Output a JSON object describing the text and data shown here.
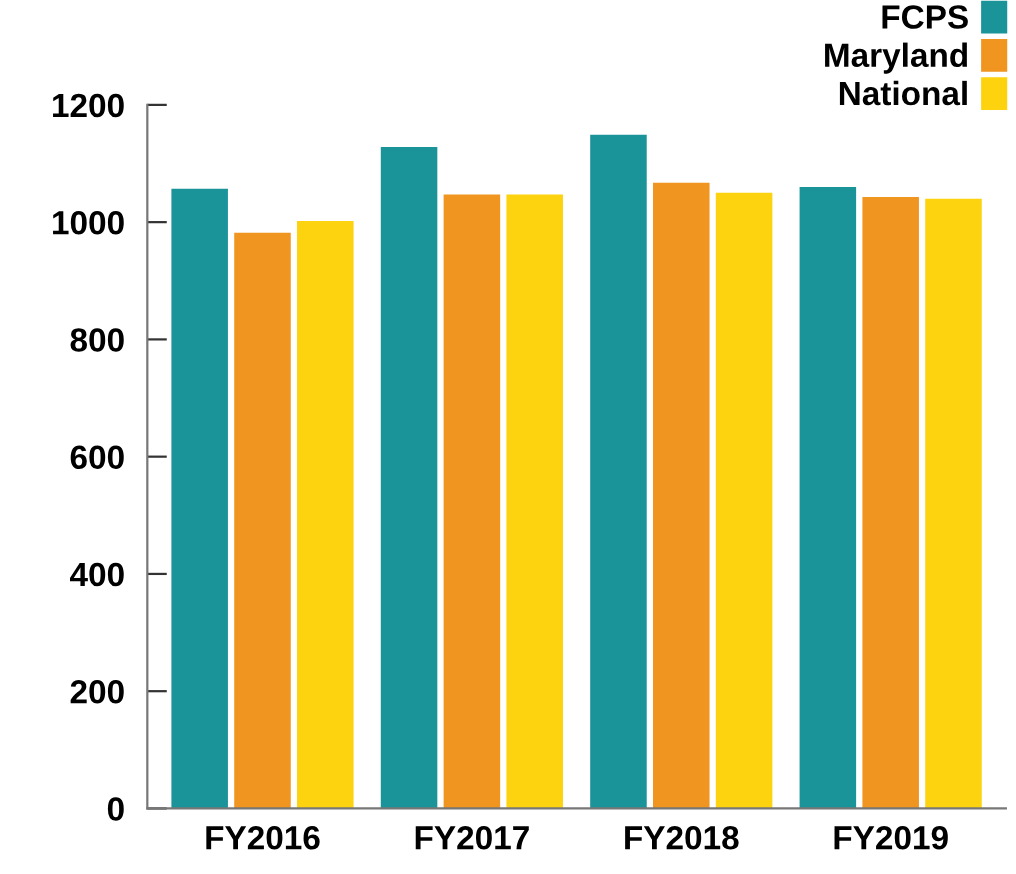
{
  "chart_data": {
    "type": "bar",
    "categories": [
      "FY2016",
      "FY2017",
      "FY2018",
      "FY2019"
    ],
    "series": [
      {
        "name": "FCPS",
        "color": "#1a9399",
        "values": [
          1057,
          1128,
          1149,
          1060
        ]
      },
      {
        "name": "Maryland",
        "color": "#f0951f",
        "values": [
          982,
          1047,
          1067,
          1043
        ]
      },
      {
        "name": "National",
        "color": "#fdd20e",
        "values": [
          1002,
          1047,
          1050,
          1040
        ]
      }
    ],
    "ylim": [
      0,
      1200
    ],
    "yticks": [
      0,
      200,
      400,
      600,
      800,
      1000,
      1200
    ],
    "grid": false,
    "legend": "top right"
  }
}
